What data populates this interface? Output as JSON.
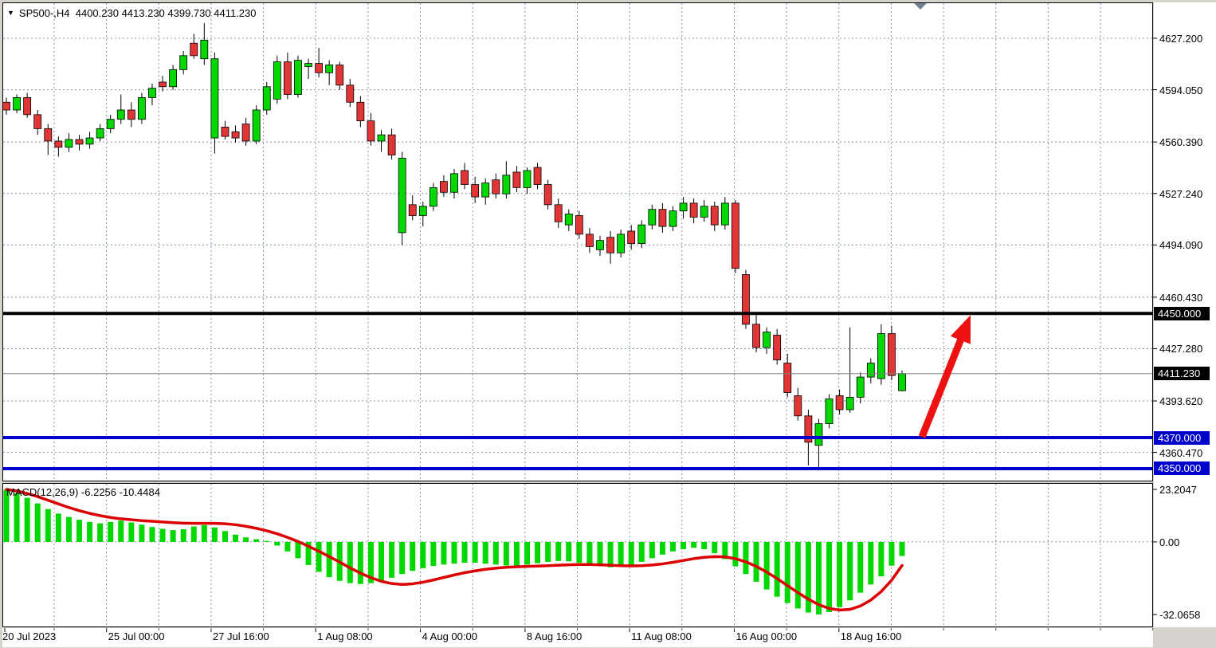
{
  "title": {
    "symbol": "SP500-",
    "timeframe": "H4",
    "open": "4400.230",
    "high": "4413.230",
    "low": "4399.730",
    "close": "4411.230"
  },
  "price_axis": {
    "ticks": [
      {
        "label": "4627.200",
        "price": 4627.2
      },
      {
        "label": "4594.050",
        "price": 4594.05
      },
      {
        "label": "4560.390",
        "price": 4560.39
      },
      {
        "label": "4527.240",
        "price": 4527.24
      },
      {
        "label": "4494.090",
        "price": 4494.09
      },
      {
        "label": "4460.430",
        "price": 4460.43
      },
      {
        "label": "4427.280",
        "price": 4427.28
      },
      {
        "label": "4393.620",
        "price": 4393.62
      },
      {
        "label": "4360.470",
        "price": 4360.47
      }
    ]
  },
  "price_levels": [
    {
      "label": "4450.000",
      "price": 4450.0,
      "line_color": "#000000",
      "box_color": "#000000",
      "thickness": 4
    },
    {
      "label": "4411.230",
      "price": 4411.23,
      "line_color": "#808080",
      "box_color": "#000000",
      "thickness": 1
    },
    {
      "label": "4370.000",
      "price": 4370.0,
      "line_color": "#0000cc",
      "box_color": "#0000cc",
      "thickness": 4
    },
    {
      "label": "4350.000",
      "price": 4350.0,
      "line_color": "#0000cc",
      "box_color": "#0000cc",
      "thickness": 4
    }
  ],
  "macd_axis": {
    "ticks": [
      {
        "label": "23.2047",
        "value": 23.2047
      },
      {
        "label": "0.00",
        "value": 0.0
      },
      {
        "label": "-32.0658",
        "value": -32.0658
      }
    ]
  },
  "time_axis": {
    "labels": [
      "20 Jul 2023",
      "25 Jul 00:00",
      "27 Jul 16:00",
      "1 Aug 08:00",
      "4 Aug 00:00",
      "8 Aug 16:00",
      "11 Aug 08:00",
      "16 Aug 00:00",
      "18 Aug 16:00"
    ]
  },
  "macd_indicator": {
    "name": "MACD(12,26,9)",
    "value_main": "-6.2256",
    "value_signal": "-10.4484"
  },
  "colors": {
    "bull": "#00d800",
    "bear": "#e23535",
    "wick": "#000000",
    "grid": "#8091a5",
    "signal_line": "#dd0000",
    "histogram": "#00d800",
    "arrow": "#ee1111",
    "marker": "#708090",
    "panel_bg": "#ffffff",
    "window_bg": "#d6d3ce"
  },
  "annotations": {
    "arrow": {
      "from_price": 4370.0,
      "to_price": 4450.0,
      "x_start": 1157,
      "x_end": 1218
    },
    "top_marker": {
      "x": 1155
    }
  },
  "chart_data": [
    {
      "type": "candlestick",
      "title": "SP500- H4 price panel",
      "ylabel": "price",
      "ylim": [
        4340,
        4640
      ],
      "grid": true,
      "series_format": "[open, high, low, close]",
      "candles": [
        [
          4586,
          4589,
          4578,
          4581
        ],
        [
          4581,
          4591,
          4579,
          4589
        ],
        [
          4589,
          4592,
          4576,
          4578
        ],
        [
          4578,
          4581,
          4565,
          4569
        ],
        [
          4569,
          4572,
          4552,
          4561
        ],
        [
          4561,
          4564,
          4551,
          4557
        ],
        [
          4557,
          4566,
          4554,
          4562
        ],
        [
          4562,
          4565,
          4555,
          4559
        ],
        [
          4559,
          4567,
          4556,
          4563
        ],
        [
          4563,
          4572,
          4561,
          4569
        ],
        [
          4569,
          4578,
          4566,
          4575
        ],
        [
          4575,
          4591,
          4572,
          4581
        ],
        [
          4581,
          4586,
          4570,
          4575
        ],
        [
          4575,
          4592,
          4572,
          4589
        ],
        [
          4589,
          4598,
          4584,
          4595
        ],
        [
          4599,
          4603,
          4593,
          4596
        ],
        [
          4596,
          4610,
          4594,
          4607
        ],
        [
          4607,
          4619,
          4604,
          4616
        ],
        [
          4624,
          4630,
          4614,
          4616
        ],
        [
          4614,
          4637,
          4610,
          4626
        ],
        [
          4563,
          4618,
          4553,
          4614
        ],
        [
          4570,
          4574,
          4562,
          4564
        ],
        [
          4567,
          4571,
          4560,
          4563
        ],
        [
          4572,
          4576,
          4558,
          4561
        ],
        [
          4561,
          4584,
          4559,
          4581
        ],
        [
          4581,
          4599,
          4578,
          4596
        ],
        [
          4588,
          4616,
          4585,
          4612
        ],
        [
          4612,
          4618,
          4588,
          4591
        ],
        [
          4591,
          4616,
          4589,
          4613
        ],
        [
          4609,
          4614,
          4601,
          4611
        ],
        [
          4611,
          4621,
          4602,
          4605
        ],
        [
          4605,
          4613,
          4597,
          4610
        ],
        [
          4610,
          4612,
          4594,
          4597
        ],
        [
          4597,
          4601,
          4583,
          4586
        ],
        [
          4586,
          4590,
          4570,
          4574
        ],
        [
          4574,
          4579,
          4558,
          4561
        ],
        [
          4561,
          4568,
          4554,
          4565
        ],
        [
          4565,
          4569,
          4549,
          4552
        ],
        [
          4502,
          4554,
          4494,
          4550
        ],
        [
          4520,
          4526,
          4510,
          4513
        ],
        [
          4513,
          4522,
          4506,
          4519
        ],
        [
          4519,
          4534,
          4516,
          4531
        ],
        [
          4535,
          4539,
          4525,
          4528
        ],
        [
          4528,
          4543,
          4524,
          4540
        ],
        [
          4542,
          4547,
          4530,
          4533
        ],
        [
          4533,
          4538,
          4521,
          4525
        ],
        [
          4525,
          4537,
          4520,
          4534
        ],
        [
          4536,
          4540,
          4524,
          4527
        ],
        [
          4527,
          4548,
          4524,
          4539
        ],
        [
          4541,
          4545,
          4528,
          4531
        ],
        [
          4531,
          4544,
          4527,
          4542
        ],
        [
          4544,
          4547,
          4530,
          4533
        ],
        [
          4533,
          4536,
          4517,
          4520
        ],
        [
          4520,
          4524,
          4505,
          4509
        ],
        [
          4507,
          4517,
          4503,
          4514
        ],
        [
          4513,
          4516,
          4498,
          4501
        ],
        [
          4501,
          4505,
          4489,
          4493
        ],
        [
          4491,
          4500,
          4487,
          4497
        ],
        [
          4499,
          4503,
          4482,
          4489
        ],
        [
          4489,
          4504,
          4486,
          4501
        ],
        [
          4503,
          4507,
          4491,
          4495
        ],
        [
          4495,
          4510,
          4492,
          4507
        ],
        [
          4507,
          4520,
          4504,
          4517
        ],
        [
          4517,
          4521,
          4502,
          4506
        ],
        [
          4506,
          4519,
          4503,
          4516
        ],
        [
          4516,
          4525,
          4511,
          4521
        ],
        [
          4521,
          4524,
          4508,
          4512
        ],
        [
          4512,
          4523,
          4509,
          4519
        ],
        [
          4519,
          4522,
          4503,
          4507
        ],
        [
          4507,
          4525,
          4504,
          4521
        ],
        [
          4521,
          4523,
          4476,
          4479
        ],
        [
          4475,
          4478,
          4440,
          4443
        ],
        [
          4443,
          4449,
          4425,
          4428
        ],
        [
          4428,
          4441,
          4424,
          4438
        ],
        [
          4436,
          4440,
          4417,
          4420
        ],
        [
          4418,
          4424,
          4396,
          4399
        ],
        [
          4397,
          4402,
          4381,
          4384
        ],
        [
          4384,
          4388,
          4352,
          4367
        ],
        [
          4365,
          4382,
          4351,
          4379
        ],
        [
          4379,
          4398,
          4376,
          4395
        ],
        [
          4397,
          4401,
          4385,
          4388
        ],
        [
          4388,
          4441,
          4386,
          4396
        ],
        [
          4396,
          4412,
          4392,
          4409
        ],
        [
          4409,
          4421,
          4405,
          4418
        ],
        [
          4408,
          4443,
          4404,
          4437
        ],
        [
          4437,
          4442,
          4407,
          4410
        ],
        [
          4400.23,
          4413.23,
          4399.73,
          4411.23
        ]
      ]
    },
    {
      "type": "bar",
      "title": "MACD(12,26,9) panel",
      "ylim": [
        -32.0658,
        23.2047
      ],
      "histogram": [
        23.0,
        21.5,
        19.5,
        17.0,
        14.5,
        12.5,
        11.0,
        9.8,
        8.8,
        8.2,
        8.8,
        9.4,
        8.6,
        7.6,
        6.6,
        5.8,
        5.2,
        5.6,
        6.8,
        7.4,
        6.4,
        4.8,
        3.2,
        2.0,
        1.2,
        0.4,
        -1.6,
        -4.2,
        -7.2,
        -10.2,
        -13.2,
        -15.6,
        -17.2,
        -18.2,
        -18.6,
        -18.2,
        -17.2,
        -15.8,
        -14.2,
        -12.8,
        -11.6,
        -10.6,
        -10.0,
        -9.6,
        -9.2,
        -9.2,
        -9.6,
        -10.0,
        -10.4,
        -10.4,
        -10.0,
        -9.4,
        -8.8,
        -8.4,
        -8.6,
        -9.2,
        -9.8,
        -10.6,
        -11.2,
        -11.0,
        -10.2,
        -8.8,
        -7.2,
        -5.6,
        -4.2,
        -3.2,
        -2.6,
        -3.2,
        -5.0,
        -7.6,
        -10.8,
        -14.2,
        -17.6,
        -21.0,
        -24.2,
        -27.0,
        -29.4,
        -31.2,
        -32.0,
        -31.0,
        -28.8,
        -25.8,
        -22.4,
        -18.8,
        -15.2,
        -10.5,
        -6.2
      ],
      "signal": [
        23.2,
        22.5,
        21.4,
        20.0,
        18.4,
        16.8,
        15.2,
        13.8,
        12.6,
        11.6,
        10.8,
        10.2,
        9.8,
        9.4,
        9.1,
        8.8,
        8.5,
        8.3,
        8.2,
        8.2,
        8.2,
        8.0,
        7.6,
        6.9,
        6.0,
        4.9,
        3.6,
        2.0,
        0.2,
        -1.9,
        -4.1,
        -6.5,
        -8.9,
        -11.5,
        -13.8,
        -15.8,
        -17.4,
        -18.4,
        -18.8,
        -18.5,
        -17.8,
        -16.8,
        -15.7,
        -14.6,
        -13.6,
        -12.8,
        -12.1,
        -11.6,
        -11.2,
        -11.0,
        -10.8,
        -10.7,
        -10.5,
        -10.3,
        -10.1,
        -10.0,
        -10.0,
        -10.1,
        -10.3,
        -10.5,
        -10.6,
        -10.5,
        -10.2,
        -9.7,
        -9.0,
        -8.2,
        -7.4,
        -6.8,
        -6.5,
        -6.6,
        -7.4,
        -8.8,
        -10.8,
        -13.3,
        -16.2,
        -19.3,
        -22.4,
        -25.3,
        -27.7,
        -29.4,
        -30.1,
        -29.8,
        -28.3,
        -25.7,
        -21.9,
        -16.9,
        -10.4
      ]
    }
  ]
}
